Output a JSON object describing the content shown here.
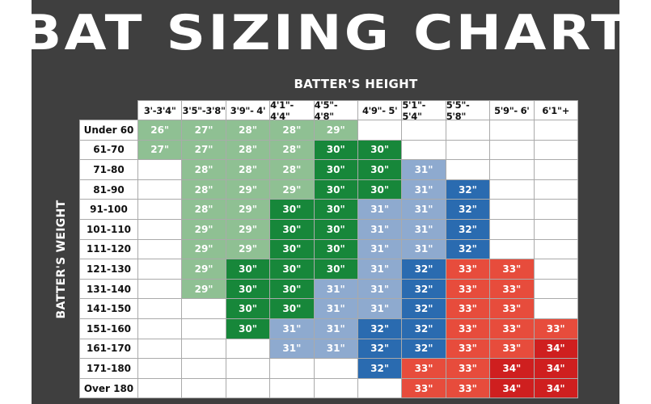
{
  "chart_data": {
    "type": "table",
    "title": "BAT SIZING CHART",
    "xlabel": "BATTER'S HEIGHT",
    "ylabel": "BATTER'S WEIGHT",
    "columns": [
      "3'-3'4\"",
      "3'5\"-3'8\"",
      "3'9\"- 4'",
      "4'1\"- 4'4\"",
      "4'5\"- 4'8\"",
      "4'9\"- 5'",
      "5'1\"- 5'4\"",
      "5'5\"- 5'8\"",
      "5'9\"- 6'",
      "6'1\"+"
    ],
    "rows": [
      {
        "label": "Under 60",
        "values": [
          "26\"",
          "27\"",
          "28\"",
          "28\"",
          "29\"",
          "",
          "",
          "",
          "",
          ""
        ]
      },
      {
        "label": "61-70",
        "values": [
          "27\"",
          "27\"",
          "28\"",
          "28\"",
          "30\"",
          "30\"",
          "",
          "",
          "",
          ""
        ]
      },
      {
        "label": "71-80",
        "values": [
          "",
          "28\"",
          "28\"",
          "28\"",
          "30\"",
          "30\"",
          "31\"",
          "",
          "",
          ""
        ]
      },
      {
        "label": "81-90",
        "values": [
          "",
          "28\"",
          "29\"",
          "29\"",
          "30\"",
          "30\"",
          "31\"",
          "32\"",
          "",
          ""
        ]
      },
      {
        "label": "91-100",
        "values": [
          "",
          "28\"",
          "29\"",
          "30\"",
          "30\"",
          "31\"",
          "31\"",
          "32\"",
          "",
          ""
        ]
      },
      {
        "label": "101-110",
        "values": [
          "",
          "29\"",
          "29\"",
          "30\"",
          "30\"",
          "31\"",
          "31\"",
          "32\"",
          "",
          ""
        ]
      },
      {
        "label": "111-120",
        "values": [
          "",
          "29\"",
          "29\"",
          "30\"",
          "30\"",
          "31\"",
          "31\"",
          "32\"",
          "",
          ""
        ]
      },
      {
        "label": "121-130",
        "values": [
          "",
          "29\"",
          "30\"",
          "30\"",
          "30\"",
          "31\"",
          "32\"",
          "33\"",
          "33\"",
          ""
        ]
      },
      {
        "label": "131-140",
        "values": [
          "",
          "29\"",
          "30\"",
          "30\"",
          "31\"",
          "31\"",
          "32\"",
          "33\"",
          "33\"",
          ""
        ]
      },
      {
        "label": "141-150",
        "values": [
          "",
          "",
          "30\"",
          "30\"",
          "31\"",
          "31\"",
          "32\"",
          "33\"",
          "33\"",
          ""
        ]
      },
      {
        "label": "151-160",
        "values": [
          "",
          "",
          "30\"",
          "31\"",
          "31\"",
          "32\"",
          "32\"",
          "33\"",
          "33\"",
          "33\""
        ]
      },
      {
        "label": "161-170",
        "values": [
          "",
          "",
          "",
          "31\"",
          "31\"",
          "32\"",
          "32\"",
          "33\"",
          "33\"",
          "34\""
        ]
      },
      {
        "label": "171-180",
        "values": [
          "",
          "",
          "",
          "",
          "",
          "32\"",
          "33\"",
          "33\"",
          "34\"",
          "34\""
        ]
      },
      {
        "label": "Over 180",
        "values": [
          "",
          "",
          "",
          "",
          "",
          "",
          "33\"",
          "33\"",
          "34\"",
          "34\""
        ]
      }
    ],
    "colors": {
      "26": "#8fc093",
      "27": "#8fc093",
      "28": "#8fc093",
      "29": "#8fc093",
      "30": "#17873a",
      "31": "#8eaacf",
      "32": "#2a6bb0",
      "33": "#e74c3c",
      "34": "#cf1f1f",
      "background": "#3f3f3f"
    }
  }
}
